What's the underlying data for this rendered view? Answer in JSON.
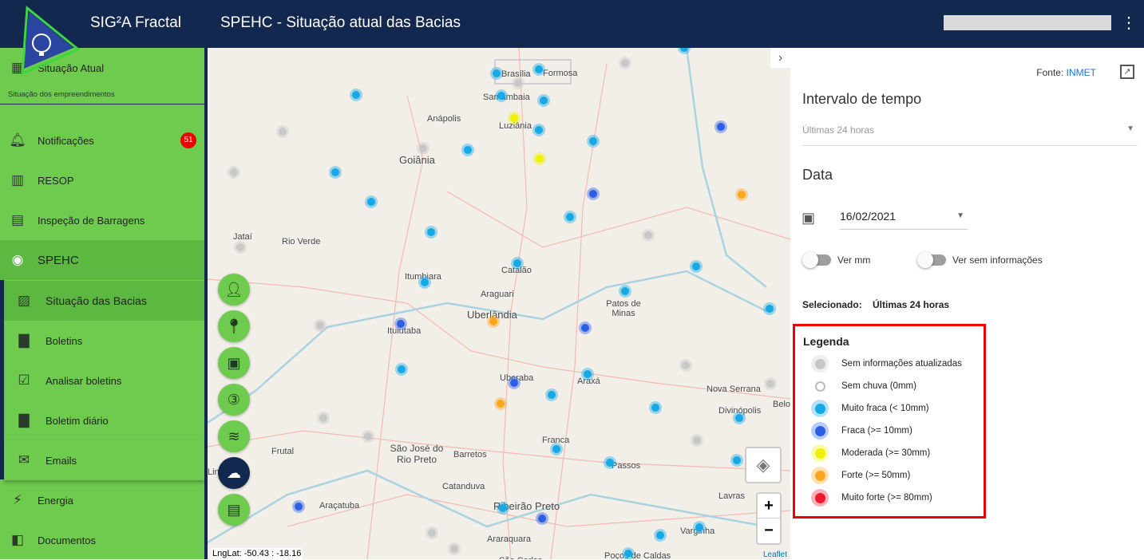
{
  "header": {
    "app_title": "SIG²A Fractal",
    "page_title": "SPEHC - Situação atual das Bacias"
  },
  "sidebar": {
    "items": [
      {
        "label": "Situação Atual",
        "icon": "dashboard-icon"
      },
      {
        "label": "Notificações",
        "icon": "bell-icon",
        "badge": "51"
      },
      {
        "label": "RESOP",
        "icon": "resop-icon"
      },
      {
        "label": "Inspeção de Barragens",
        "icon": "dam-icon"
      },
      {
        "label": "SPEHC",
        "icon": "spehc-icon"
      },
      {
        "label": "Energia",
        "icon": "lightning-icon"
      },
      {
        "label": "Documentos",
        "icon": "documents-icon"
      }
    ],
    "section_caption": "Situação dos empreendimentos",
    "subitems": [
      {
        "label": "Situação das Bacias",
        "icon": "image-icon"
      },
      {
        "label": "Boletins",
        "icon": "document-icon"
      },
      {
        "label": "Analisar boletins",
        "icon": "clipboard-check-icon"
      },
      {
        "label": "Boletim diário",
        "icon": "document-icon"
      },
      {
        "label": "Emails",
        "icon": "mail-icon"
      }
    ]
  },
  "map": {
    "labels": [
      "Brasília",
      "Formosa",
      "Samambaia",
      "Anápolis",
      "Luziânia",
      "Goiânia",
      "Jataí",
      "Rio Verde",
      "Itumbiara",
      "Catalão",
      "Araguari",
      "Patos de Minas",
      "Uberlândia",
      "Ituiutaba",
      "Uberaba",
      "Araxá",
      "Nova Serrana",
      "Divinópolis",
      "Belo",
      "São José do Rio Preto",
      "Barretos",
      "Franca",
      "Passos",
      "Catanduva",
      "Araçatuba",
      "Ribeirão Preto",
      "Lavras",
      "Varginha",
      "Araraquara",
      "São Carlos",
      "Poços de Caldas",
      "Lins",
      "Frutal"
    ],
    "coords": "LngLat: -50.43 : -18.16",
    "attribution": "Leaflet",
    "zoom_in": "+",
    "zoom_out": "−"
  },
  "panel": {
    "source_label": "Fonte:",
    "source_link": "INMET",
    "interval_title": "Intervalo de tempo",
    "interval_value": "Últimas 24 horas",
    "date_title": "Data",
    "date_value": "16/02/2021",
    "toggle_mm": "Ver mm",
    "toggle_noinfo": "Ver sem informações",
    "selected_label": "Selecionado:",
    "selected_value": "Últimas 24 horas"
  },
  "legend": {
    "title": "Legenda",
    "items": [
      {
        "label": "Sem informações atualizadas",
        "color": "#c8c8c8"
      },
      {
        "label": "Sem chuva (0mm)",
        "color": "#ffffff"
      },
      {
        "label": "Muito fraca (< 10mm)",
        "color": "#16a9e6"
      },
      {
        "label": "Fraca (>= 10mm)",
        "color": "#2d5fe6"
      },
      {
        "label": "Moderada (>= 30mm)",
        "color": "#eef200"
      },
      {
        "label": "Forte (>= 50mm)",
        "color": "#ffa51f"
      },
      {
        "label": "Muito forte (>= 80mm)",
        "color": "#f0182e"
      }
    ]
  }
}
